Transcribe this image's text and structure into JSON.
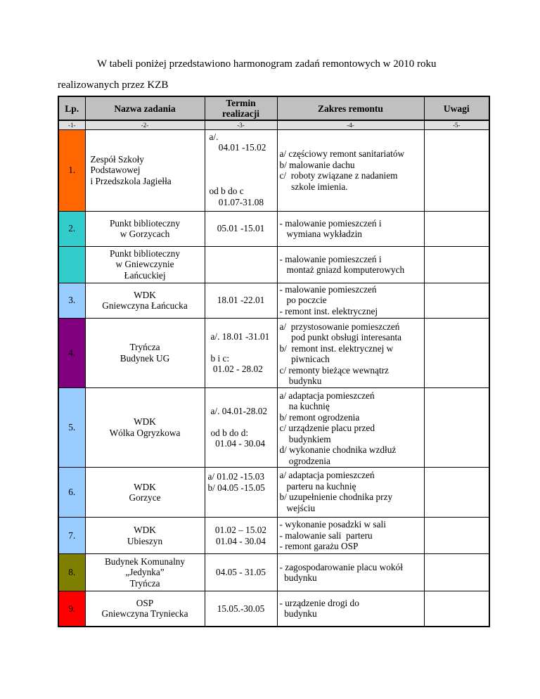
{
  "intro": {
    "line1": "W tabeli poniżej przedstawiono harmonogram zadań remontowych w 2010 roku",
    "line2": "realizowanych przez KZB"
  },
  "table": {
    "headers": [
      "Lp.",
      "Nazwa zadania",
      "Termin\nrealizacji",
      "Zakres remontu",
      "Uwagi"
    ],
    "column_numbers": [
      "-1-",
      "-2-",
      "-3-",
      "-4-",
      "-5-"
    ],
    "header_bg": "#c0c0c0",
    "column_number_bg": "#e0e0e0",
    "rows": [
      {
        "lp": "1.",
        "lp_color": "#ff6600",
        "name": "Zespół Szkoły\nPodstawowej\ni Przedszkola Jagiełła",
        "term": "a/.\n    04.01 -15.02\n\n\n\nod b do c\n    01.07-31.08",
        "scope": "a/ częściowy remont sanitariatów\nb/ malowanie dachu\nc/  roboty związane z nadaniem\n     szkole imienia.",
        "notes": ""
      },
      {
        "lp": "2.",
        "lp_color": "#33cccc",
        "name": "Punkt biblioteczny\nw Gorzycach",
        "term": "05.01 -15.01",
        "scope": "- malowanie pomieszczeń i\n   wymiana wykładzin",
        "notes": ""
      },
      {
        "lp": "",
        "lp_color": "#33cccc",
        "name": "Punkt biblioteczny\nw Gniewczynie\nŁańcuckiej",
        "term": "",
        "scope": "- malowanie pomieszczeń i\n   montaż gniazd komputerowych",
        "notes": ""
      },
      {
        "lp": "3.",
        "lp_color": "#99ccff",
        "name": "WDK\nGniewczyna Łańcucka",
        "term": "18.01 -22.01",
        "scope": "- malowanie pomieszczeń\n   po poczcie\n- remont inst. elektrycznej",
        "notes": ""
      },
      {
        "lp": "4.",
        "lp_color": "#800080",
        "name": "Tryńcza\nBudynek UG",
        "term": "a/. 18.01 -31.01\n\nb i c:\n 01.02 - 28.02",
        "scope": "a/  przystosowanie pomieszczeń\n     pod punkt obsługi interesanta\nb/  remont inst. elektrycznej w\n     piwnicach\nc/ remonty bieżące wewnątrz\n    budynku",
        "notes": ""
      },
      {
        "lp": "5.",
        "lp_color": "#99ccff",
        "name": "WDK\nWólka Ogryzkowa",
        "term": "a/. 04.01-28.02\n\nod b do d:\n  01.04 - 30.04",
        "scope": "a/ adaptacja pomieszczeń\n    na kuchnię\nb/ remont ogrodzenia\nc/ urządzenie placu przed\n    budynkiem\nd/ wykonanie chodnika wzdłuż\n    ogrodzenia",
        "notes": ""
      },
      {
        "lp": "6.",
        "lp_color": "#99ccff",
        "name": "WDK\nGorzyce",
        "term": "a/ 01.02 -15.03\nb/ 04.05 -15.05",
        "scope": "a/ adaptacja pomieszczeń\n   parteru na kuchnię\nb/ uzupełnienie chodnika przy\n   wejściu",
        "notes": ""
      },
      {
        "lp": "7.",
        "lp_color": "#99ccff",
        "name": "WDK\nUbieszyn",
        "term": "01.02 – 15.02\n01.04 - 30.04",
        "scope": "- wykonanie posadzki w sali\n- malowanie sali  parteru\n- remont garażu OSP",
        "notes": ""
      },
      {
        "lp": "8.",
        "lp_color": "#808000",
        "name": "Budynek Komunalny\n„Jedynka”\nTryńcza",
        "term": "04.05 - 31.05",
        "scope": "- zagospodarowanie placu wokół\n  budynku",
        "notes": ""
      },
      {
        "lp": "9.",
        "lp_color": "#ff0000",
        "name": "OSP\nGniewczyna Tryniecka",
        "term": "15.05.-30.05",
        "scope": "- urządzenie drogi do\n  budynku",
        "notes": ""
      }
    ]
  }
}
